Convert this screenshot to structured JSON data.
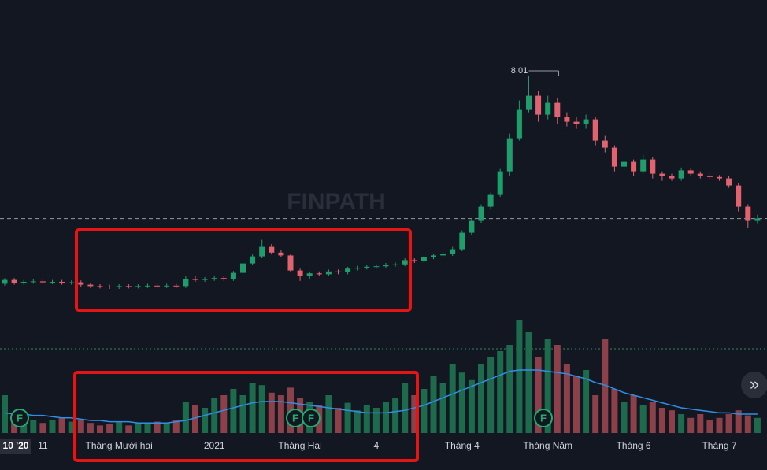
{
  "chart_data": {
    "type": "candlestick",
    "categories": [
      null,
      "10 '20",
      null,
      null,
      "11",
      null,
      null,
      null,
      null,
      null,
      null,
      null,
      "Tháng Mười hai",
      null,
      null,
      null,
      null,
      null,
      null,
      null,
      null,
      null,
      "2021",
      null,
      null,
      null,
      null,
      null,
      null,
      null,
      null,
      "Tháng Hai",
      null,
      null,
      null,
      null,
      null,
      null,
      null,
      "4",
      null,
      null,
      null,
      null,
      null,
      null,
      null,
      null,
      "Tháng 4",
      null,
      null,
      null,
      null,
      null,
      null,
      null,
      null,
      "Tháng Năm",
      null,
      null,
      null,
      null,
      null,
      null,
      null,
      null,
      "Tháng 6",
      null,
      null,
      null,
      null,
      null,
      null,
      null,
      null,
      "Tháng 7",
      null,
      null,
      null,
      null
    ],
    "open": [
      3.62,
      3.7,
      3.64,
      3.66,
      3.67,
      3.65,
      3.66,
      3.64,
      3.65,
      3.6,
      3.57,
      3.56,
      3.55,
      3.57,
      3.56,
      3.57,
      3.58,
      3.57,
      3.58,
      3.57,
      3.72,
      3.7,
      3.72,
      3.74,
      3.72,
      3.85,
      4.05,
      4.2,
      4.4,
      4.28,
      4.22,
      3.9,
      3.78,
      3.84,
      3.82,
      3.88,
      3.86,
      3.94,
      3.96,
      3.98,
      3.99,
      4.02,
      4.03,
      4.12,
      4.1,
      4.18,
      4.22,
      4.25,
      4.35,
      4.7,
      4.95,
      5.25,
      5.5,
      6.0,
      6.7,
      7.3,
      7.6,
      7.2,
      7.45,
      7.15,
      7.05,
      7.0,
      7.1,
      6.65,
      6.5,
      6.1,
      6.2,
      6.0,
      6.25,
      5.95,
      5.9,
      5.85,
      6.02,
      5.95,
      5.9,
      5.88,
      5.85,
      5.7,
      5.25,
      4.95
    ],
    "high": [
      3.74,
      3.74,
      3.7,
      3.71,
      3.71,
      3.7,
      3.7,
      3.69,
      3.69,
      3.64,
      3.61,
      3.6,
      3.61,
      3.61,
      3.61,
      3.62,
      3.62,
      3.62,
      3.62,
      3.78,
      3.78,
      3.76,
      3.78,
      3.78,
      3.89,
      4.09,
      4.24,
      4.55,
      4.46,
      4.34,
      4.26,
      3.94,
      3.88,
      3.88,
      3.92,
      3.92,
      3.98,
      4.0,
      4.02,
      4.03,
      4.06,
      4.07,
      4.16,
      4.16,
      4.22,
      4.26,
      4.29,
      4.4,
      4.75,
      5.0,
      5.3,
      5.55,
      6.05,
      6.8,
      7.5,
      8.01,
      7.7,
      7.6,
      7.55,
      7.25,
      7.15,
      7.2,
      7.15,
      6.75,
      6.55,
      6.3,
      6.25,
      6.35,
      6.3,
      6.0,
      5.95,
      6.08,
      6.08,
      6.0,
      5.95,
      5.92,
      5.9,
      5.75,
      5.3,
      5.08
    ],
    "low": [
      3.58,
      3.6,
      3.6,
      3.62,
      3.61,
      3.61,
      3.6,
      3.6,
      3.56,
      3.53,
      3.52,
      3.51,
      3.51,
      3.52,
      3.52,
      3.53,
      3.53,
      3.53,
      3.53,
      3.53,
      3.66,
      3.66,
      3.68,
      3.68,
      3.68,
      3.81,
      4.01,
      4.16,
      4.24,
      4.18,
      3.86,
      3.68,
      3.72,
      3.78,
      3.78,
      3.82,
      3.82,
      3.9,
      3.92,
      3.94,
      3.95,
      3.98,
      3.99,
      4.06,
      4.06,
      4.14,
      4.18,
      4.21,
      4.31,
      4.66,
      4.91,
      5.21,
      5.46,
      5.9,
      6.65,
      7.25,
      7.05,
      7.1,
      7.0,
      6.95,
      6.9,
      6.9,
      6.55,
      6.4,
      6.0,
      6.0,
      5.9,
      5.95,
      5.85,
      5.8,
      5.8,
      5.8,
      5.9,
      5.85,
      5.82,
      5.8,
      5.65,
      5.15,
      4.8,
      4.9
    ],
    "close": [
      3.7,
      3.64,
      3.66,
      3.67,
      3.65,
      3.66,
      3.64,
      3.65,
      3.6,
      3.57,
      3.56,
      3.55,
      3.57,
      3.56,
      3.57,
      3.58,
      3.57,
      3.58,
      3.57,
      3.72,
      3.7,
      3.72,
      3.74,
      3.72,
      3.85,
      4.05,
      4.2,
      4.4,
      4.28,
      4.22,
      3.9,
      3.78,
      3.84,
      3.82,
      3.88,
      3.86,
      3.94,
      3.96,
      3.98,
      3.99,
      4.02,
      4.03,
      4.12,
      4.1,
      4.18,
      4.22,
      4.25,
      4.35,
      4.7,
      4.95,
      5.25,
      5.5,
      6.0,
      6.7,
      7.3,
      7.6,
      7.2,
      7.45,
      7.15,
      7.05,
      7.0,
      7.1,
      6.65,
      6.5,
      6.1,
      6.2,
      6.0,
      6.25,
      5.95,
      5.9,
      5.85,
      6.02,
      5.95,
      5.9,
      5.88,
      5.85,
      5.7,
      5.25,
      4.95,
      5.0
    ],
    "volume": [
      30,
      15,
      12,
      10,
      8,
      10,
      12,
      9,
      10,
      8,
      6,
      7,
      9,
      6,
      8,
      7,
      9,
      8,
      10,
      25,
      22,
      20,
      28,
      30,
      35,
      30,
      40,
      38,
      32,
      30,
      36,
      28,
      25,
      22,
      30,
      20,
      24,
      18,
      22,
      20,
      25,
      28,
      40,
      30,
      35,
      45,
      40,
      55,
      48,
      42,
      55,
      60,
      65,
      70,
      90,
      80,
      60,
      75,
      70,
      55,
      45,
      50,
      30,
      75,
      35,
      25,
      30,
      22,
      25,
      20,
      18,
      15,
      12,
      15,
      10,
      12,
      15,
      18,
      14,
      12
    ],
    "volume_ma": [
      16,
      15,
      15,
      14,
      14,
      13,
      12,
      12,
      11,
      10,
      10,
      9,
      9,
      9,
      8,
      8,
      8,
      8,
      9,
      10,
      12,
      14,
      16,
      18,
      20,
      22,
      24,
      25,
      25,
      25,
      24,
      23,
      22,
      21,
      20,
      19,
      18,
      17,
      16,
      16,
      16,
      17,
      18,
      20,
      22,
      25,
      28,
      31,
      34,
      37,
      40,
      43,
      46,
      49,
      50,
      50,
      50,
      49,
      48,
      47,
      45,
      43,
      40,
      38,
      35,
      32,
      30,
      28,
      26,
      24,
      22,
      20,
      19,
      18,
      17,
      16,
      16,
      15,
      15,
      15
    ],
    "ylim": [
      2.5,
      8.5
    ],
    "volume_ylim": [
      0,
      100
    ],
    "up_color": "#1f9e6b",
    "down_color": "#e0636f",
    "volume_up_color": "#1d6b4c",
    "volume_down_color": "#8c4049",
    "volume_ma_color": "#2f8fe6",
    "watermark": "FINPATH",
    "markers": [
      "F",
      "F",
      "F",
      "F"
    ]
  },
  "ui": {
    "scroll_button": "»"
  }
}
